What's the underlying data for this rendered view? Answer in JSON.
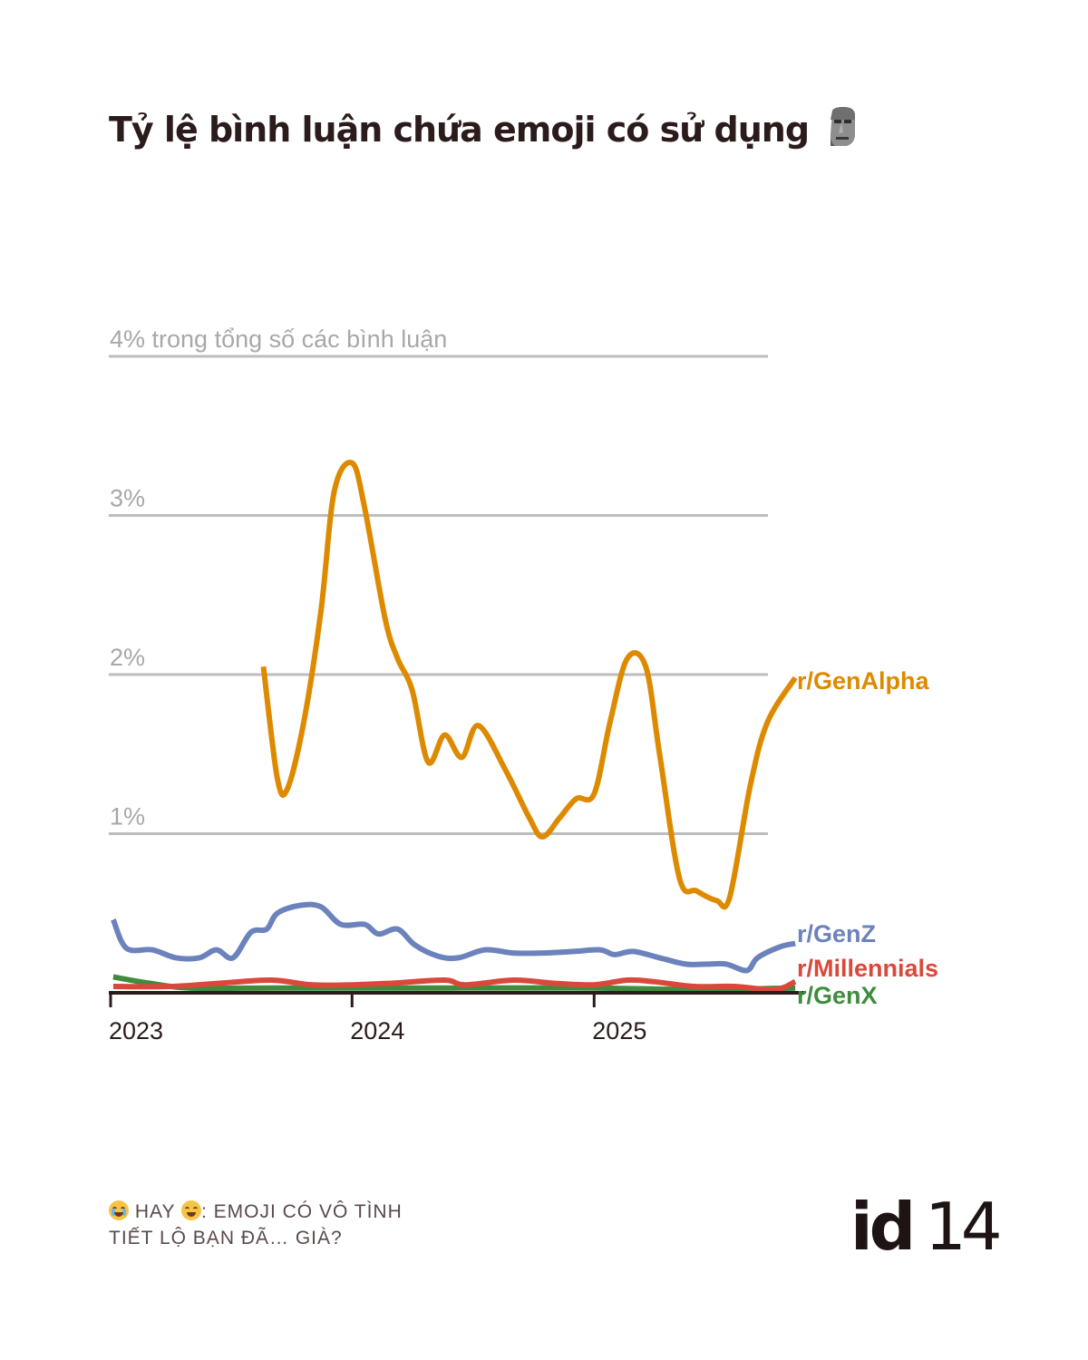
{
  "title": "Tỷ lệ bình luận chứa emoji có sử dụng",
  "title_icon": "moai-icon",
  "footer": {
    "line1_a": "HAY",
    "line1_b": ": EMOJI CÓ VÔ TÌNH",
    "line2": "TIẾT LỘ BẠN ĐÃ… GIÀ?",
    "icon_1": "loudly-crying-face-icon",
    "icon_2": "face-with-tears-of-joy-icon"
  },
  "logo": {
    "text_a": "id",
    "text_b": "14"
  },
  "colors": {
    "genalpha": "#de8a00",
    "genz": "#6b82bd",
    "millennials": "#d9483b",
    "genx": "#3f8c3d",
    "grid": "#bdbdbd",
    "axis": "#2b1b1b",
    "muted": "#a8a8a8"
  },
  "chart_data": {
    "type": "line",
    "y_unit": "% of comments",
    "ylim": [
      0,
      4
    ],
    "yticks": [
      {
        "value": 1,
        "label": "1%"
      },
      {
        "value": 2,
        "label": "2%"
      },
      {
        "value": 3,
        "label": "3%"
      },
      {
        "value": 4,
        "label": "4% trong tổng số các bình luận"
      }
    ],
    "xlim": [
      "2023-01-01",
      "2025-11-15"
    ],
    "xticks": [
      {
        "value": "2023-01-01",
        "label": "2023"
      },
      {
        "value": "2024-01-01",
        "label": "2024"
      },
      {
        "value": "2025-01-01",
        "label": "2025"
      }
    ],
    "grid": true,
    "legend": "direct labels at right end of lines",
    "series": [
      {
        "name": "r/GenAlpha",
        "color_key": "genalpha",
        "points": [
          [
            "2023-08-20",
            2.05
          ],
          [
            "2023-09-10",
            1.35
          ],
          [
            "2023-09-25",
            1.28
          ],
          [
            "2023-10-20",
            1.7
          ],
          [
            "2023-11-15",
            2.4
          ],
          [
            "2023-12-05",
            3.15
          ],
          [
            "2024-01-01",
            3.33
          ],
          [
            "2024-01-20",
            3.05
          ],
          [
            "2024-02-20",
            2.35
          ],
          [
            "2024-03-10",
            2.1
          ],
          [
            "2024-04-01",
            1.9
          ],
          [
            "2024-04-25",
            1.45
          ],
          [
            "2024-05-20",
            1.62
          ],
          [
            "2024-06-15",
            1.48
          ],
          [
            "2024-07-10",
            1.68
          ],
          [
            "2024-08-20",
            1.4
          ],
          [
            "2024-09-25",
            1.1
          ],
          [
            "2024-10-15",
            0.98
          ],
          [
            "2024-11-10",
            1.1
          ],
          [
            "2024-12-05",
            1.22
          ],
          [
            "2025-01-01",
            1.25
          ],
          [
            "2025-01-25",
            1.7
          ],
          [
            "2025-02-20",
            2.1
          ],
          [
            "2025-03-20",
            2.05
          ],
          [
            "2025-04-10",
            1.5
          ],
          [
            "2025-05-10",
            0.72
          ],
          [
            "2025-06-05",
            0.64
          ],
          [
            "2025-07-05",
            0.58
          ],
          [
            "2025-07-25",
            0.6
          ],
          [
            "2025-08-25",
            1.3
          ],
          [
            "2025-09-20",
            1.7
          ],
          [
            "2025-11-01",
            1.98
          ]
        ]
      },
      {
        "name": "r/GenZ",
        "color_key": "genz",
        "points": [
          [
            "2023-01-05",
            0.46
          ],
          [
            "2023-01-25",
            0.28
          ],
          [
            "2023-03-05",
            0.27
          ],
          [
            "2023-04-10",
            0.22
          ],
          [
            "2023-05-15",
            0.22
          ],
          [
            "2023-06-10",
            0.27
          ],
          [
            "2023-07-05",
            0.22
          ],
          [
            "2023-08-01",
            0.38
          ],
          [
            "2023-08-25",
            0.4
          ],
          [
            "2023-09-10",
            0.5
          ],
          [
            "2023-10-15",
            0.55
          ],
          [
            "2023-11-15",
            0.54
          ],
          [
            "2023-12-15",
            0.43
          ],
          [
            "2024-01-20",
            0.43
          ],
          [
            "2024-02-10",
            0.37
          ],
          [
            "2024-03-10",
            0.4
          ],
          [
            "2024-04-05",
            0.3
          ],
          [
            "2024-05-10",
            0.23
          ],
          [
            "2024-06-10",
            0.22
          ],
          [
            "2024-07-20",
            0.27
          ],
          [
            "2024-09-01",
            0.25
          ],
          [
            "2024-10-15",
            0.25
          ],
          [
            "2024-12-01",
            0.26
          ],
          [
            "2025-01-10",
            0.27
          ],
          [
            "2025-02-01",
            0.24
          ],
          [
            "2025-03-01",
            0.26
          ],
          [
            "2025-04-10",
            0.22
          ],
          [
            "2025-05-20",
            0.18
          ],
          [
            "2025-06-20",
            0.18
          ],
          [
            "2025-07-20",
            0.18
          ],
          [
            "2025-08-20",
            0.14
          ],
          [
            "2025-09-05",
            0.22
          ],
          [
            "2025-10-10",
            0.29
          ],
          [
            "2025-11-01",
            0.31
          ]
        ]
      },
      {
        "name": "r/Millennials",
        "color_key": "millennials",
        "points": [
          [
            "2023-01-05",
            0.04
          ],
          [
            "2023-04-01",
            0.04
          ],
          [
            "2023-06-15",
            0.06
          ],
          [
            "2023-09-01",
            0.08
          ],
          [
            "2023-11-01",
            0.05
          ],
          [
            "2024-01-01",
            0.05
          ],
          [
            "2024-03-01",
            0.06
          ],
          [
            "2024-05-20",
            0.08
          ],
          [
            "2024-06-20",
            0.05
          ],
          [
            "2024-09-01",
            0.08
          ],
          [
            "2024-11-01",
            0.06
          ],
          [
            "2025-01-01",
            0.05
          ],
          [
            "2025-02-20",
            0.08
          ],
          [
            "2025-04-01",
            0.07
          ],
          [
            "2025-06-01",
            0.04
          ],
          [
            "2025-08-01",
            0.04
          ],
          [
            "2025-10-01",
            0.02
          ],
          [
            "2025-11-01",
            0.07
          ]
        ]
      },
      {
        "name": "r/GenX",
        "color_key": "genx",
        "points": [
          [
            "2023-01-05",
            0.1
          ],
          [
            "2023-03-01",
            0.06
          ],
          [
            "2023-05-01",
            0.03
          ],
          [
            "2023-09-01",
            0.03
          ],
          [
            "2024-01-01",
            0.03
          ],
          [
            "2024-06-01",
            0.03
          ],
          [
            "2025-01-01",
            0.03
          ],
          [
            "2025-06-01",
            0.02
          ],
          [
            "2025-11-01",
            0.03
          ]
        ]
      }
    ]
  }
}
